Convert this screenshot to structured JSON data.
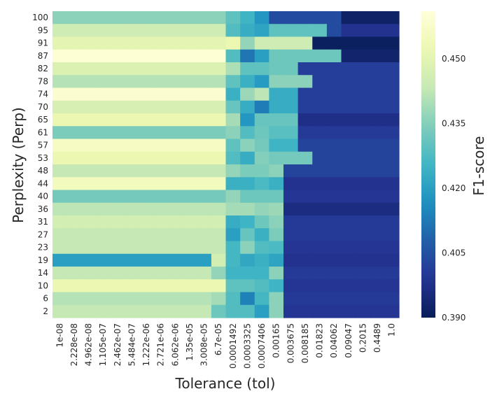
{
  "chart_data": {
    "type": "heatmap",
    "title": "",
    "xlabel": "Tolerance (tol)",
    "ylabel": "Perplexity (Perp)",
    "colorbar_label": "F1-score",
    "colormap": "YlGnBu",
    "vmin": 0.39,
    "vmax": 0.461,
    "colorbar_ticks": [
      "0.390",
      "0.405",
      "0.420",
      "0.435",
      "0.450"
    ],
    "x_labels": [
      "1e-08",
      "2.228e-08",
      "4.962e-08",
      "1.105e-07",
      "2.462e-07",
      "5.484e-07",
      "1.222e-06",
      "2.721e-06",
      "6.062e-06",
      "1.35e-05",
      "3.008e-05",
      "6.7e-05",
      "0.0001492",
      "0.0003325",
      "0.0007406",
      "0.00165",
      "0.003675",
      "0.008185",
      "0.01823",
      "0.04062",
      "0.09047",
      "0.2015",
      "0.4489",
      "1.0"
    ],
    "y_labels": [
      "100",
      "95",
      "91",
      "87",
      "82",
      "78",
      "74",
      "70",
      "65",
      "61",
      "57",
      "53",
      "48",
      "44",
      "40",
      "36",
      "31",
      "27",
      "23",
      "19",
      "14",
      "10",
      "6",
      "2"
    ],
    "values": [
      [
        0.436,
        0.436,
        0.436,
        0.436,
        0.436,
        0.436,
        0.436,
        0.436,
        0.436,
        0.436,
        0.436,
        0.436,
        0.43,
        0.425,
        0.418,
        0.404,
        0.404,
        0.404,
        0.404,
        0.404,
        0.392,
        0.392,
        0.392,
        0.392
      ],
      [
        0.445,
        0.445,
        0.445,
        0.445,
        0.445,
        0.445,
        0.445,
        0.445,
        0.445,
        0.445,
        0.445,
        0.445,
        0.428,
        0.423,
        0.421,
        0.43,
        0.43,
        0.43,
        0.43,
        0.404,
        0.398,
        0.398,
        0.398,
        0.398
      ],
      [
        0.45,
        0.45,
        0.45,
        0.45,
        0.45,
        0.45,
        0.45,
        0.45,
        0.45,
        0.45,
        0.45,
        0.45,
        0.452,
        0.437,
        0.445,
        0.445,
        0.445,
        0.445,
        0.391,
        0.391,
        0.391,
        0.391,
        0.391,
        0.391
      ],
      [
        0.46,
        0.46,
        0.46,
        0.46,
        0.46,
        0.46,
        0.46,
        0.46,
        0.46,
        0.46,
        0.46,
        0.46,
        0.428,
        0.412,
        0.42,
        0.432,
        0.432,
        0.432,
        0.432,
        0.432,
        0.393,
        0.393,
        0.393,
        0.393
      ],
      [
        0.448,
        0.448,
        0.448,
        0.448,
        0.448,
        0.448,
        0.448,
        0.448,
        0.448,
        0.448,
        0.448,
        0.448,
        0.44,
        0.43,
        0.43,
        0.432,
        0.432,
        0.401,
        0.401,
        0.401,
        0.401,
        0.401,
        0.401,
        0.401
      ],
      [
        0.441,
        0.441,
        0.441,
        0.441,
        0.441,
        0.441,
        0.441,
        0.441,
        0.441,
        0.441,
        0.441,
        0.441,
        0.43,
        0.424,
        0.419,
        0.436,
        0.436,
        0.436,
        0.401,
        0.401,
        0.401,
        0.401,
        0.401,
        0.401
      ],
      [
        0.459,
        0.459,
        0.459,
        0.459,
        0.459,
        0.459,
        0.459,
        0.459,
        0.459,
        0.459,
        0.459,
        0.459,
        0.424,
        0.438,
        0.442,
        0.423,
        0.423,
        0.401,
        0.401,
        0.401,
        0.401,
        0.401,
        0.401,
        0.401
      ],
      [
        0.447,
        0.447,
        0.447,
        0.447,
        0.447,
        0.447,
        0.447,
        0.447,
        0.447,
        0.447,
        0.447,
        0.447,
        0.431,
        0.423,
        0.413,
        0.423,
        0.423,
        0.401,
        0.401,
        0.401,
        0.401,
        0.401,
        0.401,
        0.401
      ],
      [
        0.452,
        0.452,
        0.452,
        0.452,
        0.452,
        0.452,
        0.452,
        0.452,
        0.452,
        0.452,
        0.452,
        0.452,
        0.439,
        0.418,
        0.431,
        0.431,
        0.431,
        0.397,
        0.397,
        0.397,
        0.397,
        0.397,
        0.397,
        0.397
      ],
      [
        0.434,
        0.434,
        0.434,
        0.434,
        0.434,
        0.434,
        0.434,
        0.434,
        0.434,
        0.434,
        0.434,
        0.434,
        0.436,
        0.428,
        0.432,
        0.429,
        0.429,
        0.4,
        0.4,
        0.4,
        0.4,
        0.4,
        0.4,
        0.4
      ],
      [
        0.456,
        0.456,
        0.456,
        0.456,
        0.456,
        0.456,
        0.456,
        0.456,
        0.456,
        0.456,
        0.456,
        0.456,
        0.43,
        0.436,
        0.433,
        0.425,
        0.425,
        0.402,
        0.402,
        0.402,
        0.402,
        0.402,
        0.402,
        0.402
      ],
      [
        0.452,
        0.452,
        0.452,
        0.452,
        0.452,
        0.452,
        0.452,
        0.452,
        0.452,
        0.452,
        0.452,
        0.452,
        0.428,
        0.423,
        0.435,
        0.433,
        0.433,
        0.433,
        0.402,
        0.402,
        0.402,
        0.402,
        0.402,
        0.402
      ],
      [
        0.443,
        0.443,
        0.443,
        0.443,
        0.443,
        0.443,
        0.443,
        0.443,
        0.443,
        0.443,
        0.443,
        0.443,
        0.437,
        0.434,
        0.434,
        0.436,
        0.402,
        0.402,
        0.402,
        0.402,
        0.402,
        0.402,
        0.402,
        0.402
      ],
      [
        0.455,
        0.455,
        0.455,
        0.455,
        0.455,
        0.455,
        0.455,
        0.455,
        0.455,
        0.455,
        0.455,
        0.455,
        0.424,
        0.424,
        0.427,
        0.424,
        0.398,
        0.398,
        0.398,
        0.398,
        0.398,
        0.398,
        0.398,
        0.398
      ],
      [
        0.433,
        0.433,
        0.433,
        0.433,
        0.433,
        0.433,
        0.433,
        0.433,
        0.433,
        0.433,
        0.433,
        0.433,
        0.437,
        0.432,
        0.432,
        0.432,
        0.399,
        0.399,
        0.399,
        0.399,
        0.399,
        0.399,
        0.399,
        0.399
      ],
      [
        0.442,
        0.442,
        0.442,
        0.442,
        0.442,
        0.442,
        0.442,
        0.442,
        0.442,
        0.442,
        0.442,
        0.442,
        0.439,
        0.439,
        0.437,
        0.438,
        0.396,
        0.396,
        0.396,
        0.396,
        0.396,
        0.396,
        0.396,
        0.396
      ],
      [
        0.446,
        0.446,
        0.446,
        0.446,
        0.446,
        0.446,
        0.446,
        0.446,
        0.446,
        0.446,
        0.446,
        0.446,
        0.423,
        0.425,
        0.432,
        0.436,
        0.4,
        0.4,
        0.4,
        0.4,
        0.4,
        0.4,
        0.4,
        0.4
      ],
      [
        0.443,
        0.443,
        0.443,
        0.443,
        0.443,
        0.443,
        0.443,
        0.443,
        0.443,
        0.443,
        0.443,
        0.443,
        0.42,
        0.431,
        0.424,
        0.434,
        0.4,
        0.4,
        0.4,
        0.4,
        0.4,
        0.4,
        0.4,
        0.4
      ],
      [
        0.443,
        0.443,
        0.443,
        0.443,
        0.443,
        0.443,
        0.443,
        0.443,
        0.443,
        0.443,
        0.443,
        0.443,
        0.426,
        0.436,
        0.428,
        0.427,
        0.399,
        0.399,
        0.399,
        0.399,
        0.399,
        0.399,
        0.399,
        0.399
      ],
      [
        0.42,
        0.42,
        0.42,
        0.42,
        0.42,
        0.42,
        0.42,
        0.42,
        0.42,
        0.42,
        0.42,
        0.446,
        0.426,
        0.422,
        0.424,
        0.421,
        0.398,
        0.398,
        0.398,
        0.398,
        0.398,
        0.398,
        0.398,
        0.398
      ],
      [
        0.443,
        0.443,
        0.443,
        0.443,
        0.443,
        0.443,
        0.443,
        0.443,
        0.443,
        0.443,
        0.443,
        0.437,
        0.425,
        0.425,
        0.425,
        0.436,
        0.4,
        0.4,
        0.4,
        0.4,
        0.4,
        0.4,
        0.4,
        0.4
      ],
      [
        0.452,
        0.452,
        0.452,
        0.452,
        0.452,
        0.452,
        0.452,
        0.452,
        0.452,
        0.452,
        0.452,
        0.452,
        0.43,
        0.43,
        0.428,
        0.425,
        0.399,
        0.399,
        0.399,
        0.399,
        0.399,
        0.399,
        0.399,
        0.399
      ],
      [
        0.441,
        0.441,
        0.441,
        0.441,
        0.441,
        0.441,
        0.441,
        0.441,
        0.441,
        0.441,
        0.441,
        0.439,
        0.428,
        0.414,
        0.426,
        0.436,
        0.4,
        0.4,
        0.4,
        0.4,
        0.4,
        0.4,
        0.4,
        0.4
      ],
      [
        0.443,
        0.443,
        0.443,
        0.443,
        0.443,
        0.443,
        0.443,
        0.443,
        0.443,
        0.443,
        0.443,
        0.432,
        0.428,
        0.428,
        0.42,
        0.436,
        0.399,
        0.399,
        0.399,
        0.399,
        0.399,
        0.399,
        0.399,
        0.399
      ]
    ]
  }
}
